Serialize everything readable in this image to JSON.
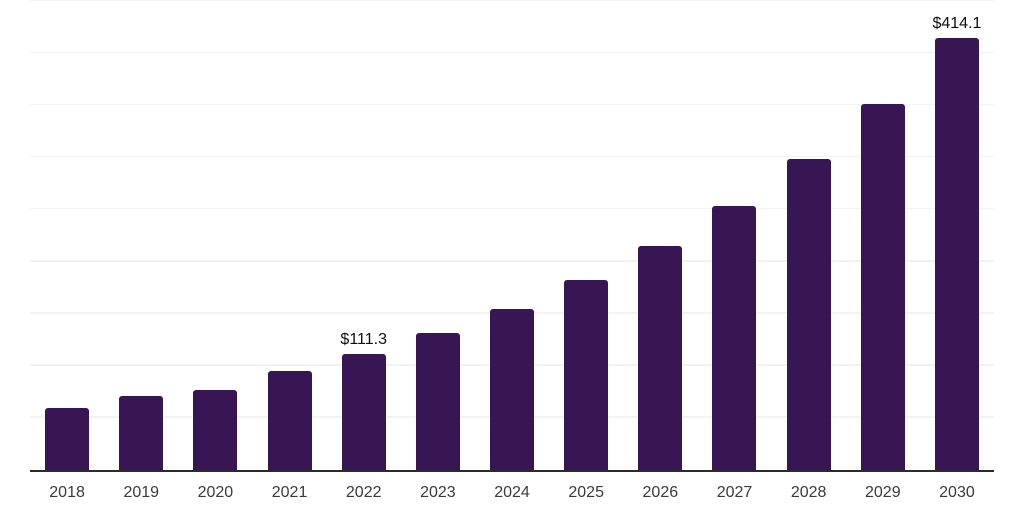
{
  "chart_data": {
    "type": "bar",
    "title": "",
    "xlabel": "",
    "ylabel": "",
    "categories": [
      "2018",
      "2019",
      "2020",
      "2021",
      "2022",
      "2023",
      "2024",
      "2025",
      "2026",
      "2027",
      "2028",
      "2029",
      "2030"
    ],
    "values": [
      59.4,
      71.0,
      76.9,
      95.4,
      111.3,
      131.2,
      154.6,
      182.2,
      214.7,
      253.0,
      298.2,
      351.4,
      414.1
    ],
    "data_labels": [
      "",
      "",
      "",
      "",
      "$111.3",
      "",
      "",
      "",
      "",
      "",
      "",
      "",
      "$414.1"
    ],
    "ylim": [
      0,
      451
    ],
    "gridline_values": [
      50,
      100,
      150,
      200,
      250,
      300,
      350,
      400,
      450
    ],
    "grid": "horizontal",
    "legend": "none",
    "y_axis_labels": "none",
    "colors": {
      "bar": "#381553",
      "axis_line": "#2b2b2b",
      "tick_label": "#3a3a3a",
      "data_label": "#0f0f0f",
      "gridline": "#f2f2f2",
      "background": "#ffffff"
    }
  }
}
